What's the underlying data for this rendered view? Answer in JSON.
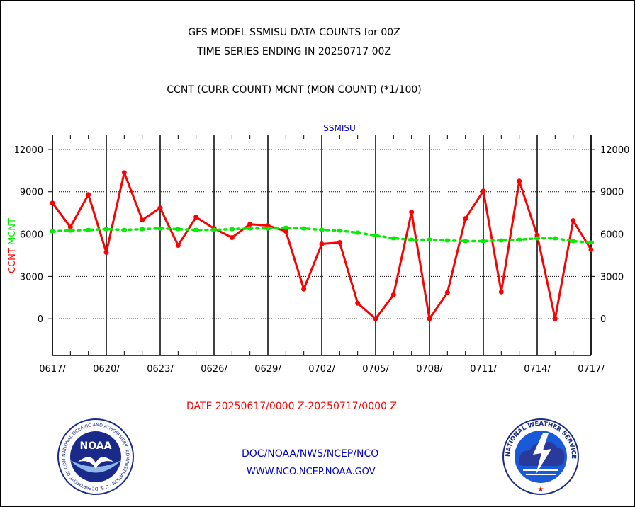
{
  "titles": {
    "line1": "GFS MODEL SSMISU DATA COUNTS for 00Z",
    "line2": "TIME SERIES ENDING IN 20250717 00Z",
    "line3": "CCNT (CURR COUNT) MCNT (MON COUNT) (*1/100)"
  },
  "date_range": "DATE 20250617/0000 Z-20250717/0000 Z",
  "footer": {
    "line1": "DOC/NOAA/NWS/NCEP/NCO",
    "line2": "WWW.NCO.NCEP.NOAA.GOV"
  },
  "logos": {
    "left": {
      "icon": "noaa-logo",
      "text": "NOAA",
      "ring_text": "NATIONAL OCEANIC AND ATMOSPHERIC ADMINISTRATION · U.S. DEPARTMENT OF COMMERCE"
    },
    "right": {
      "icon": "nws-logo",
      "ring_text": "NATIONAL WEATHER SERVICE"
    }
  },
  "colors": {
    "ccnt": "#ff0000",
    "mcnt": "#00ee00",
    "title_blue": "#0000cc"
  },
  "chart_data": {
    "type": "line",
    "title": "SSMISU",
    "ylabel_left_parts": [
      {
        "text": "CCNT",
        "color": "#ff0000"
      },
      {
        "text": "MCNT",
        "color": "#00ee00"
      }
    ],
    "ylim": [
      -2600,
      13000
    ],
    "yticks": [
      0,
      3000,
      6000,
      9000,
      12000
    ],
    "ytick_labels": [
      "0",
      "3000",
      "6000",
      "9000",
      "12000"
    ],
    "x_count": 31,
    "xtick_labels": [
      "0617/",
      "0620/",
      "0623/",
      "0626/",
      "0629/",
      "0702/",
      "0705/",
      "0708/",
      "0711/",
      "0714/",
      "0717/"
    ],
    "xtick_every": 3,
    "grid": true,
    "series": [
      {
        "name": "CCNT",
        "color": "#ff0000",
        "values": [
          8200,
          6500,
          8800,
          4700,
          10350,
          7000,
          7850,
          5200,
          7200,
          6400,
          5750,
          6700,
          6600,
          6200,
          2100,
          5300,
          5400,
          1100,
          0,
          1700,
          7550,
          0,
          1850,
          7100,
          9050,
          1900,
          9750,
          5900,
          0,
          6950,
          4900
        ]
      },
      {
        "name": "MCNT",
        "color": "#00ee00",
        "values": [
          6200,
          6250,
          6300,
          6350,
          6300,
          6350,
          6400,
          6350,
          6300,
          6300,
          6350,
          6400,
          6400,
          6450,
          6400,
          6300,
          6250,
          6100,
          5900,
          5700,
          5600,
          5600,
          5550,
          5500,
          5500,
          5550,
          5600,
          5700,
          5700,
          5500,
          5400
        ]
      }
    ]
  }
}
